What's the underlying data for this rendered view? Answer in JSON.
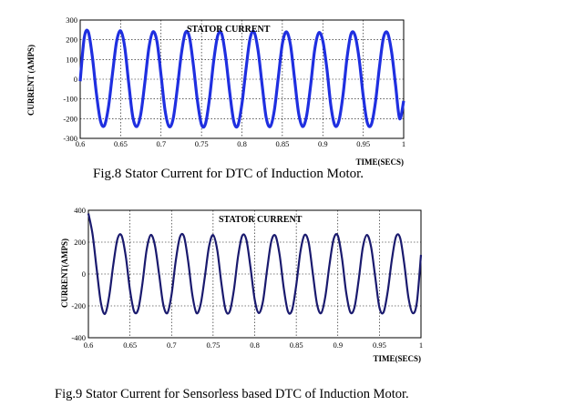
{
  "chart_data": [
    {
      "type": "line",
      "title": "STATOR CURRENT",
      "xlabel": "TIME(SECS)",
      "ylabel": "CURRENT (AMPS)",
      "xlim": [
        0.6,
        1.0
      ],
      "ylim": [
        -300,
        300
      ],
      "xticks": [
        "0.6",
        "0.65",
        "0.7",
        "0.75",
        "0.8",
        "0.85",
        "0.9",
        "0.95",
        "1"
      ],
      "yticks": [
        "300",
        "200",
        "100",
        "0",
        "-100",
        "-200",
        "-300"
      ],
      "grid": true,
      "series": [
        {
          "color": "#1f2fe0",
          "x": [
            0.6,
            0.605,
            0.61,
            0.615,
            0.62,
            0.625,
            0.63,
            0.635,
            0.64,
            0.645,
            0.65,
            0.655,
            0.66,
            0.665,
            0.67,
            0.675,
            0.68,
            0.685,
            0.69,
            0.695,
            0.7,
            0.705,
            0.71,
            0.715,
            0.72,
            0.725,
            0.73,
            0.735,
            0.74,
            0.745,
            0.75,
            0.755,
            0.76,
            0.765,
            0.77,
            0.775,
            0.78,
            0.785,
            0.79,
            0.795,
            0.8,
            0.805,
            0.81,
            0.815,
            0.82,
            0.825,
            0.83,
            0.835,
            0.84,
            0.845,
            0.85,
            0.855,
            0.86,
            0.865,
            0.87,
            0.875,
            0.88,
            0.885,
            0.89,
            0.895,
            0.9,
            0.905,
            0.91,
            0.915,
            0.92,
            0.925,
            0.93,
            0.935,
            0.94,
            0.945,
            0.95,
            0.955,
            0.96,
            0.965,
            0.97,
            0.975,
            0.98,
            0.985,
            0.99,
            0.995,
            1.0
          ],
          "y": [
            -10,
            210,
            240,
            115,
            -70,
            -210,
            -235,
            -140,
            30,
            190,
            245,
            165,
            -20,
            -190,
            -240,
            -175,
            -15,
            160,
            240,
            190,
            20,
            -160,
            -240,
            -200,
            -50,
            125,
            235,
            215,
            70,
            -110,
            -230,
            -225,
            -95,
            90,
            220,
            230,
            110,
            -70,
            -215,
            -235,
            -125,
            50,
            205,
            240,
            145,
            -30,
            -195,
            -240,
            -160,
            10,
            180,
            240,
            175,
            5,
            -170,
            -240,
            -185,
            -30,
            150,
            235,
            195,
            55,
            -135,
            -235,
            -210,
            -80,
            110,
            230,
            220,
            100,
            -85,
            -220,
            -230,
            -120,
            60,
            210,
            235,
            140,
            -30,
            -200,
            -110
          ]
        }
      ]
    },
    {
      "type": "line",
      "title": "STATOR CURRENT",
      "xlabel": "TIME(SECS)",
      "ylabel": "CURRENT(AMPS)",
      "xlim": [
        0.6,
        1.0
      ],
      "ylim": [
        -400,
        400
      ],
      "xticks": [
        "0.6",
        "0.65",
        "0.7",
        "0.75",
        "0.8",
        "0.85",
        "0.9",
        "0.95",
        "1"
      ],
      "yticks": [
        "400",
        "200",
        "0",
        "-200",
        "-400"
      ],
      "grid": true,
      "series": [
        {
          "color": "#1a1a6e",
          "x": [
            0.6,
            0.605,
            0.61,
            0.615,
            0.62,
            0.625,
            0.63,
            0.635,
            0.64,
            0.645,
            0.65,
            0.655,
            0.66,
            0.665,
            0.67,
            0.675,
            0.68,
            0.685,
            0.69,
            0.695,
            0.7,
            0.705,
            0.71,
            0.715,
            0.72,
            0.725,
            0.73,
            0.735,
            0.74,
            0.745,
            0.75,
            0.755,
            0.76,
            0.765,
            0.77,
            0.775,
            0.78,
            0.785,
            0.79,
            0.795,
            0.8,
            0.805,
            0.81,
            0.815,
            0.82,
            0.825,
            0.83,
            0.835,
            0.84,
            0.845,
            0.85,
            0.855,
            0.86,
            0.865,
            0.87,
            0.875,
            0.88,
            0.885,
            0.89,
            0.895,
            0.9,
            0.905,
            0.91,
            0.915,
            0.92,
            0.925,
            0.93,
            0.935,
            0.94,
            0.945,
            0.95,
            0.955,
            0.96,
            0.965,
            0.97,
            0.975,
            0.98,
            0.985,
            0.99,
            0.995,
            1.0
          ],
          "y": [
            380,
            250,
            30,
            -180,
            -250,
            -140,
            60,
            220,
            240,
            110,
            -100,
            -235,
            -220,
            -60,
            150,
            245,
            180,
            0,
            -190,
            -245,
            -130,
            80,
            230,
            235,
            80,
            -130,
            -245,
            -190,
            -20,
            170,
            245,
            150,
            -60,
            -225,
            -235,
            -100,
            110,
            240,
            215,
            40,
            -160,
            -245,
            -170,
            30,
            205,
            240,
            120,
            -90,
            -235,
            -225,
            -70,
            140,
            245,
            195,
            0,
            -190,
            -245,
            -140,
            60,
            220,
            240,
            100,
            -115,
            -240,
            -210,
            -40,
            165,
            245,
            170,
            -20,
            -210,
            -240,
            -110,
            90,
            235,
            225,
            60,
            -150,
            -245,
            -180,
            120
          ]
        }
      ]
    }
  ],
  "captions": {
    "fig8": "Fig.8 Stator Current for DTC of Induction Motor.",
    "fig9": "Fig.9 Stator Current for Sensorless based DTC of Induction Motor."
  }
}
